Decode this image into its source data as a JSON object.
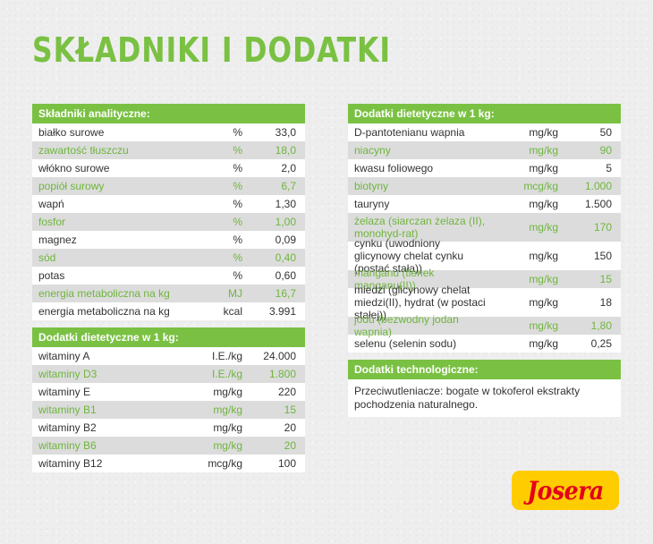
{
  "title": "Składniki i Dodatki",
  "analytic": {
    "header": "Składniki analityczne:",
    "rows": [
      {
        "name": "białko surowe",
        "unit": "%",
        "value": "33,0"
      },
      {
        "name": "zawartość tłuszczu",
        "unit": "%",
        "value": "18,0"
      },
      {
        "name": "włókno surowe",
        "unit": "%",
        "value": "2,0"
      },
      {
        "name": "popiół surowy",
        "unit": "%",
        "value": "6,7"
      },
      {
        "name": "wapń",
        "unit": "%",
        "value": "1,30"
      },
      {
        "name": "fosfor",
        "unit": "%",
        "value": "1,00"
      },
      {
        "name": "magnez",
        "unit": "%",
        "value": "0,09"
      },
      {
        "name": "sód",
        "unit": "%",
        "value": "0,40"
      },
      {
        "name": "potas",
        "unit": "%",
        "value": "0,60"
      },
      {
        "name": "energia metaboliczna na kg",
        "unit": "MJ",
        "value": "16,7"
      },
      {
        "name": "energia metaboliczna na kg",
        "unit": "kcal",
        "value": "3.991"
      }
    ]
  },
  "dietary_left": {
    "header": "Dodatki dietetyczne w 1 kg:",
    "rows": [
      {
        "name": "witaminy A",
        "unit": "I.E./kg",
        "value": "24.000"
      },
      {
        "name": "witaminy D3",
        "unit": "I.E./kg",
        "value": "1.800"
      },
      {
        "name": "witaminy E",
        "unit": "mg/kg",
        "value": "220"
      },
      {
        "name": "witaminy B1",
        "unit": "mg/kg",
        "value": "15"
      },
      {
        "name": "witaminy B2",
        "unit": "mg/kg",
        "value": "20"
      },
      {
        "name": "witaminy B6",
        "unit": "mg/kg",
        "value": "20"
      },
      {
        "name": "witaminy B12",
        "unit": "mcg/kg",
        "value": "100"
      }
    ]
  },
  "dietary_right": {
    "header": "Dodatki dietetyczne w 1 kg:",
    "rows": [
      {
        "name": "D-pantotenianu wapnia",
        "unit": "mg/kg",
        "value": "50"
      },
      {
        "name": "niacyny",
        "unit": "mg/kg",
        "value": "90"
      },
      {
        "name": "kwasu foliowego",
        "unit": "mg/kg",
        "value": "5"
      },
      {
        "name": "biotyny",
        "unit": "mcg/kg",
        "value": "1.000"
      },
      {
        "name": "tauryny",
        "unit": "mg/kg",
        "value": "1.500"
      },
      {
        "name": "żelaza (siarczan żelaza (II), monohyd-rat)",
        "unit": "mg/kg",
        "value": "170"
      },
      {
        "name": "cynku (uwodniony glicynowy chelat cynku (postać stała))",
        "unit": "mg/kg",
        "value": "150"
      },
      {
        "name": "manganu (tlenek manganu(II))",
        "unit": "mg/kg",
        "value": "15"
      },
      {
        "name": "miedzi (glicynowy chelat miedzi(II), hydrat (w postaci stałej))",
        "unit": "mg/kg",
        "value": "18"
      },
      {
        "name": "jodu (bezwodny jodan wapnia)",
        "unit": "mg/kg",
        "value": "1,80"
      },
      {
        "name": "selenu (selenin sodu)",
        "unit": "mg/kg",
        "value": "0,25"
      }
    ]
  },
  "technological": {
    "header": "Dodatki technologiczne:",
    "text": "Przeciwutleniacze: bogate w tokoferol ekstrakty pochodzenia naturalnego."
  },
  "logo": {
    "text": "Josera"
  },
  "colors": {
    "accent": "#7ac143",
    "alt_row": "#dcdcdc",
    "logo_bg": "#ffcc00",
    "logo_text": "#e3001b"
  }
}
